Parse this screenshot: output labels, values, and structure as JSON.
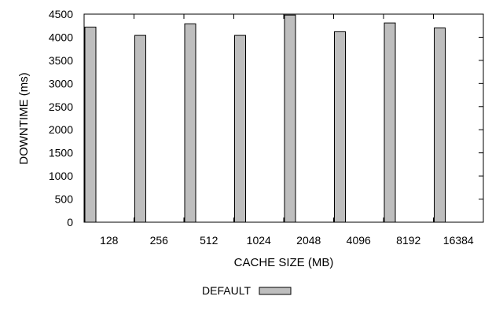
{
  "chart_data": {
    "type": "bar",
    "categories": [
      "128",
      "256",
      "512",
      "1024",
      "2048",
      "4096",
      "8192",
      "16384"
    ],
    "series": [
      {
        "name": "DEFAULT",
        "values": [
          4220,
          4040,
          4290,
          4040,
          4480,
          4120,
          4310,
          4200
        ],
        "color": "#bebebe"
      }
    ],
    "xlabel": "CACHE SIZE (MB)",
    "ylabel": "DOWNTIME (ms)",
    "ylim": [
      0,
      4500
    ],
    "yticks": [
      0,
      500,
      1000,
      1500,
      2000,
      2500,
      3000,
      3500,
      4000,
      4500
    ],
    "grid": false,
    "legend": "bottom-center"
  }
}
